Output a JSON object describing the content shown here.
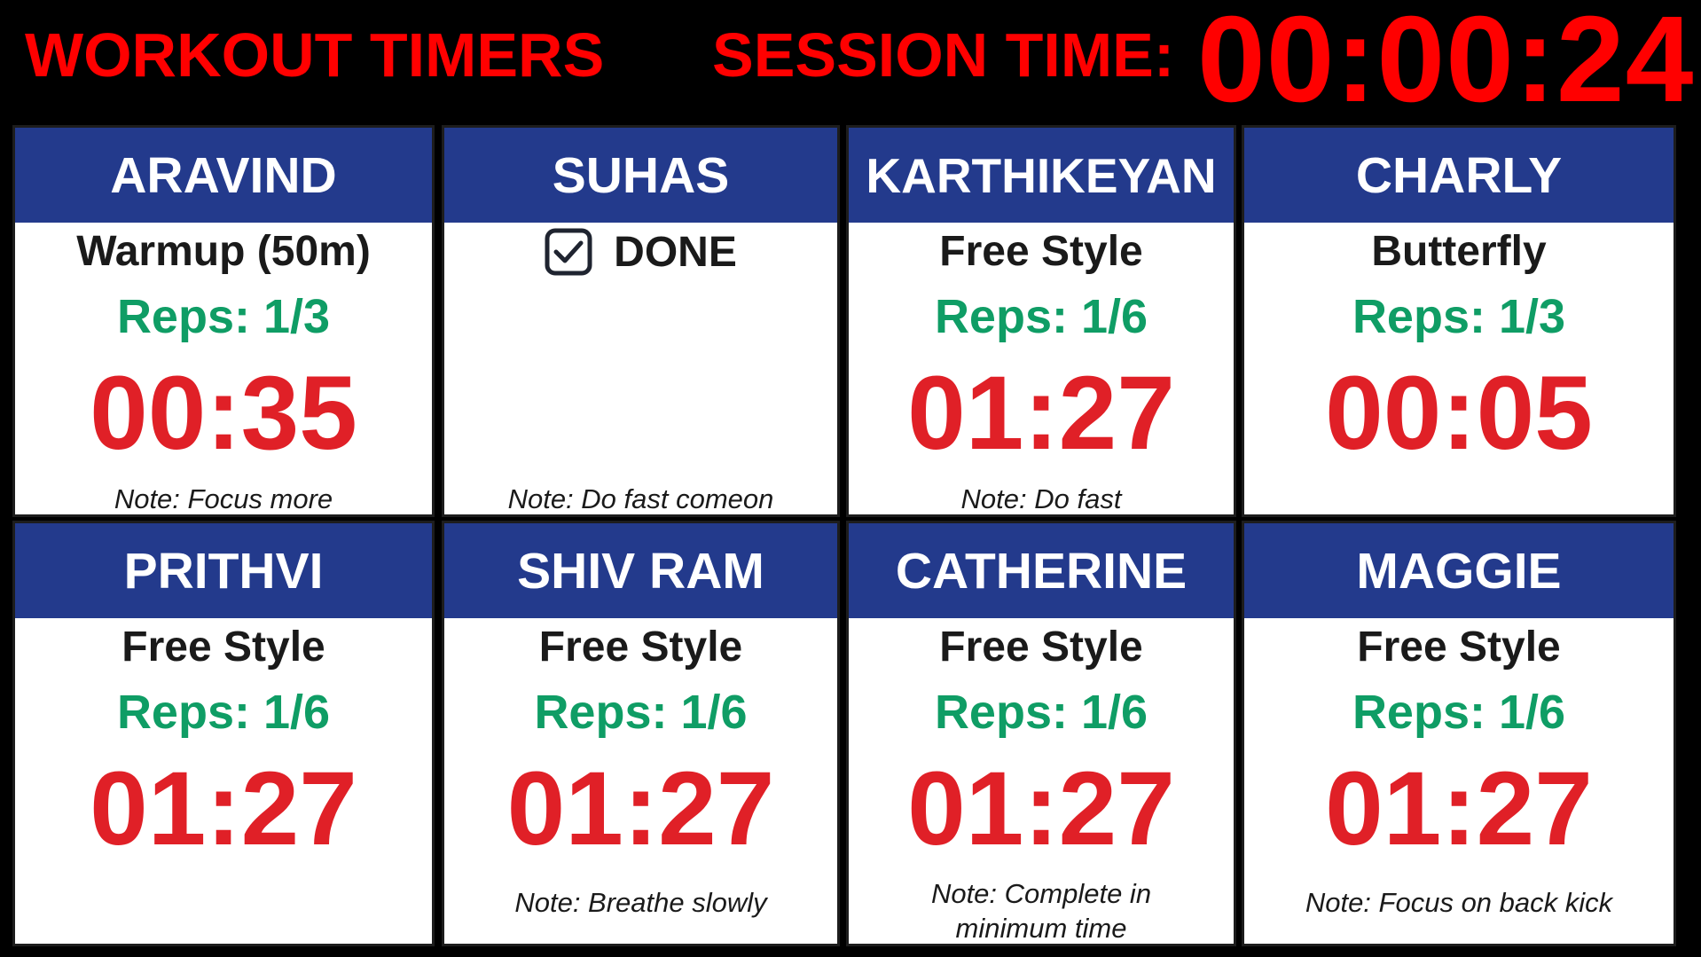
{
  "header": {
    "title": "WORKOUT TIMERS",
    "session_label": "SESSION TIME:",
    "session_time": "00:00:24"
  },
  "colors": {
    "accent_red": "#ff0000",
    "timer_red": "#e02027",
    "header_blue": "#233a8c",
    "reps_green": "#0f9d65",
    "background": "#000000"
  },
  "athletes": [
    {
      "name": "ARAVIND",
      "activity": "Warmup  (50m)",
      "reps": "Reps: 1/3",
      "time": "00:35",
      "note": "Note: Focus more"
    },
    {
      "name": "SUHAS",
      "status": "DONE",
      "status_icon": "checkbox-checked-icon",
      "note": "Note: Do fast comeon"
    },
    {
      "name": "KARTHIKEYAN",
      "activity": "Free Style",
      "reps": "Reps: 1/6",
      "time": "01:27",
      "note": "Note: Do fast"
    },
    {
      "name": "CHARLY",
      "activity": "Butterfly",
      "reps": "Reps: 1/3",
      "time": "00:05"
    },
    {
      "name": "PRITHVI",
      "activity": "Free Style",
      "reps": "Reps: 1/6",
      "time": "01:27"
    },
    {
      "name": "SHIV RAM",
      "activity": "Free Style",
      "reps": "Reps: 1/6",
      "time": "01:27",
      "note": "Note: Breathe slowly"
    },
    {
      "name": "CATHERINE",
      "activity": "Free Style",
      "reps": "Reps: 1/6",
      "time": "01:27",
      "note_line1": "Note: Complete in",
      "note_line2": "minimum time"
    },
    {
      "name": "MAGGIE",
      "activity": "Free Style",
      "reps": "Reps: 1/6",
      "time": "01:27",
      "note": "Note: Focus on back kick"
    }
  ]
}
